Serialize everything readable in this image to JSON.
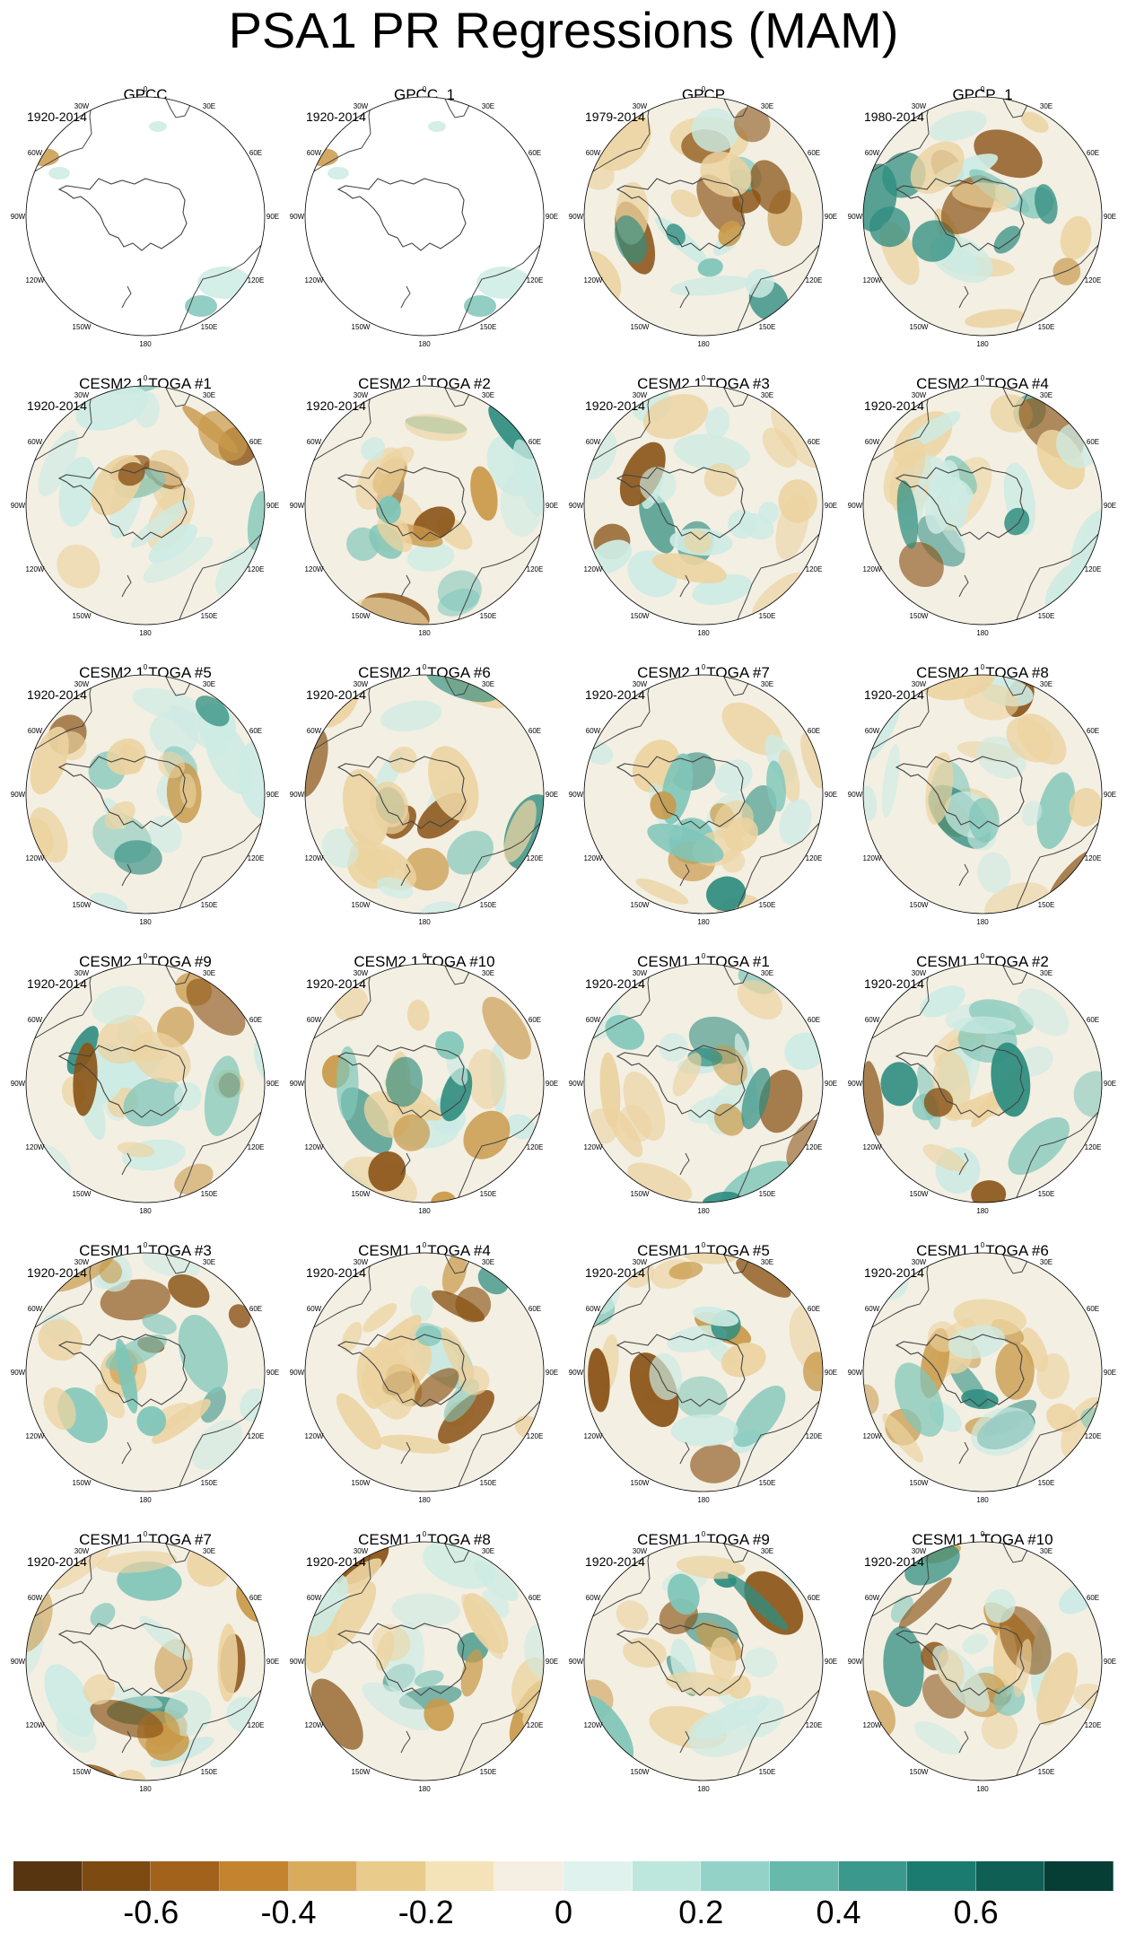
{
  "title": "PSA1 PR Regressions (MAM)",
  "longitude_labels": [
    "0",
    "30E",
    "60E",
    "90E",
    "120E",
    "150E",
    "180",
    "150W",
    "120W",
    "90W",
    "60W",
    "30W"
  ],
  "panels": [
    {
      "title": "GPCC",
      "period": "1920-2014",
      "coverage": "land-only"
    },
    {
      "title": "GPCC_1",
      "period": "1920-2014",
      "coverage": "land-only"
    },
    {
      "title": "GPCP",
      "period": "1979-2014",
      "coverage": "full"
    },
    {
      "title": "GPCP_1",
      "period": "1980-2014",
      "coverage": "full"
    },
    {
      "title": "CESM2.1 TOGA #1",
      "period": "1920-2014",
      "coverage": "full"
    },
    {
      "title": "CESM2.1 TOGA #2",
      "period": "1920-2014",
      "coverage": "full"
    },
    {
      "title": "CESM2.1 TOGA #3",
      "period": "1920-2014",
      "coverage": "full"
    },
    {
      "title": "CESM2.1 TOGA #4",
      "period": "1920-2014",
      "coverage": "full"
    },
    {
      "title": "CESM2.1 TOGA #5",
      "period": "1920-2014",
      "coverage": "full"
    },
    {
      "title": "CESM2.1 TOGA #6",
      "period": "1920-2014",
      "coverage": "full"
    },
    {
      "title": "CESM2.1 TOGA #7",
      "period": "1920-2014",
      "coverage": "full"
    },
    {
      "title": "CESM2.1 TOGA #8",
      "period": "1920-2014",
      "coverage": "full"
    },
    {
      "title": "CESM2.1 TOGA #9",
      "period": "1920-2014",
      "coverage": "full"
    },
    {
      "title": "CESM2.1 TOGA #10",
      "period": "1920-2014",
      "coverage": "full"
    },
    {
      "title": "CESM1.1 TOGA #1",
      "period": "1920-2014",
      "coverage": "full"
    },
    {
      "title": "CESM1.1 TOGA #2",
      "period": "1920-2014",
      "coverage": "full"
    },
    {
      "title": "CESM1.1 TOGA #3",
      "period": "1920-2014",
      "coverage": "full"
    },
    {
      "title": "CESM1.1 TOGA #4",
      "period": "1920-2014",
      "coverage": "full"
    },
    {
      "title": "CESM1.1 TOGA #5",
      "period": "1920-2014",
      "coverage": "full"
    },
    {
      "title": "CESM1.1 TOGA #6",
      "period": "1920-2014",
      "coverage": "full"
    },
    {
      "title": "CESM1.1 TOGA #7",
      "period": "1920-2014",
      "coverage": "full"
    },
    {
      "title": "CESM1.1 TOGA #8",
      "period": "1920-2014",
      "coverage": "full"
    },
    {
      "title": "CESM1.1 TOGA #9",
      "period": "1920-2014",
      "coverage": "full"
    },
    {
      "title": "CESM1.1 TOGA #10",
      "period": "1920-2014",
      "coverage": "full"
    }
  ],
  "colorbar": {
    "colors": [
      "#573510",
      "#7d4a12",
      "#a3621c",
      "#c3832f",
      "#d9ab5d",
      "#e9cc8c",
      "#f4e3b9",
      "#f4efe2",
      "#e0f2ee",
      "#bde6dd",
      "#93d3c7",
      "#66b9ab",
      "#3b988c",
      "#1c7b70",
      "#0f5f55",
      "#063d34"
    ],
    "tick_values": [
      -0.6,
      -0.4,
      -0.2,
      0,
      0.2,
      0.4,
      0.6
    ],
    "tick_labels": [
      "-0.6",
      "-0.4",
      "-0.2",
      "0",
      "0.2",
      "0.4",
      "0.6"
    ]
  },
  "palette": {
    "dry_strong": "#8a5316",
    "dry": "#c99a4a",
    "dry_light": "#ecd3a0",
    "neutral": "#f3efe3",
    "wet_light": "#cdebe4",
    "wet": "#7fc6b9",
    "wet_strong": "#2f8d80",
    "coast": "#444444"
  }
}
